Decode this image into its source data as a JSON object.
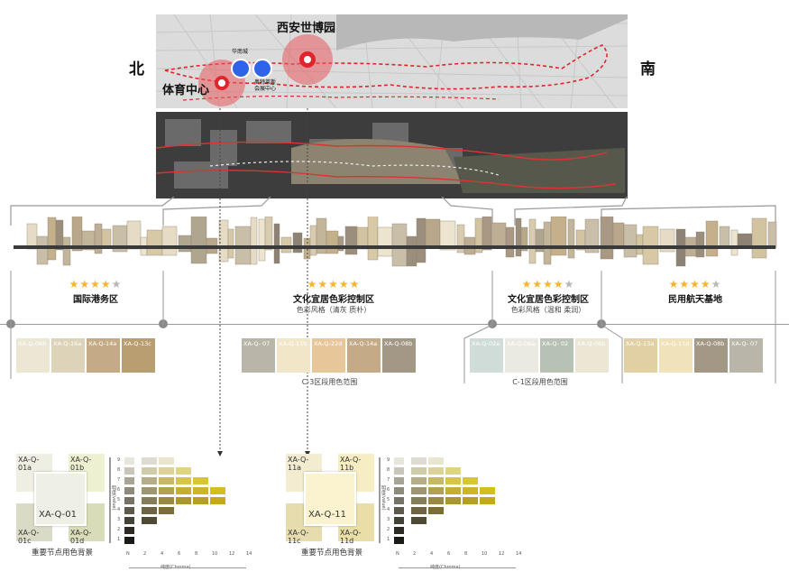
{
  "directions": {
    "north": "北",
    "south": "南"
  },
  "pois": {
    "expo": "西安世博园",
    "sports": "体育中心",
    "huanan": "华南城",
    "outlets": "奥特莱斯\n会展中心"
  },
  "zones": [
    {
      "id": "z1",
      "title": "国际港务区",
      "stars": 4,
      "sub": "",
      "swatches": [
        "XA-Q-06b",
        "XA-Q-16a",
        "XA-Q-14a",
        "XA-Q-13c"
      ],
      "caption": ""
    },
    {
      "id": "z2",
      "title": "文化宜居色彩控制区",
      "stars": 5,
      "sub": "色彩风格（清灰 质朴）",
      "swatches": [
        "XA-Q- 07",
        "XA-Q-11b",
        "XA-Q-22d",
        "XA-Q-14a",
        "XA-Q-08b"
      ],
      "caption": "C-3区段用色范围"
    },
    {
      "id": "z3",
      "title": "文化宜居色彩控制区",
      "stars": 4,
      "sub": "色彩风格（温和 柔润）",
      "swatches": [
        "XA-Q-02a",
        "XA-Q-06a",
        "XA-Q- 02",
        "XA-Q-06b"
      ],
      "caption": "C-1区段用色范围"
    },
    {
      "id": "z4",
      "title": "民用航天基地",
      "stars": 4,
      "sub": "",
      "swatches": [
        "XA-Q-13a",
        "XA-Q-11d",
        "XA-Q-08b",
        "XA-Q- 07"
      ],
      "caption": ""
    }
  ],
  "colors": {
    "accent_red": "#e0262c",
    "poi_blue": "#2f63e8",
    "star": "#f3b431"
  },
  "detail_panels": [
    {
      "main": "XA-Q-01",
      "tl": "XA-Q-01a",
      "tr": "XA-Q-01b",
      "bl": "XA-Q-01c",
      "br": "XA-Q-01d",
      "caption": "重要节点用色背景",
      "y_axis": "明度(value)",
      "x_axis": "纯度(Chroma)",
      "x_ticks": [
        "N",
        "2",
        "4",
        "6",
        "8",
        "10",
        "12",
        "14"
      ],
      "y_ticks": [
        "9",
        "8",
        "7",
        "6",
        "5",
        "4",
        "3",
        "2",
        "1"
      ]
    },
    {
      "main": "XA-Q-11",
      "tl": "XA-Q-11a",
      "tr": "XA-Q-11b",
      "bl": "XA-Q-11c",
      "br": "XA-Q-11d",
      "caption": "重要节点用色背景",
      "y_axis": "明度(value)",
      "x_axis": "纯度(Chroma)",
      "x_ticks": [
        "N",
        "2",
        "4",
        "6",
        "8",
        "10",
        "12",
        "14"
      ],
      "y_ticks": [
        "9",
        "8",
        "7",
        "6",
        "5",
        "4",
        "3",
        "2",
        "1"
      ]
    }
  ]
}
